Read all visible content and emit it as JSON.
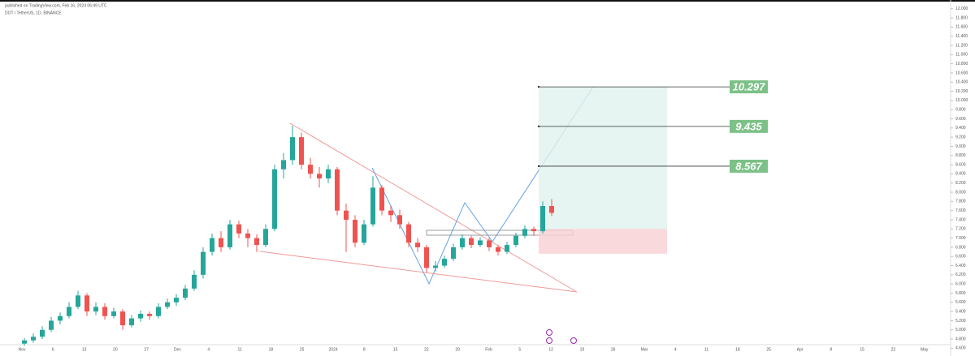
{
  "chart_data": {
    "type": "candlestick",
    "header": "DOT / TetherUS, 1D, BINANCE",
    "published": "published on TradingView.com, Feb 16, 2024 06:49 UTC",
    "candles": {
      "open": [
        4.7,
        4.77,
        4.85,
        5.0,
        5.2,
        5.3,
        5.5,
        5.75,
        5.4,
        5.5,
        5.3,
        5.4,
        5.1,
        5.25,
        5.35,
        5.3,
        5.5,
        5.6,
        5.7,
        5.9,
        6.2,
        6.7,
        7.0,
        6.8,
        7.3,
        7.1,
        7.0,
        6.85,
        7.2,
        8.5,
        8.7,
        9.2,
        8.6,
        8.4,
        8.3,
        8.5,
        7.6,
        7.4,
        6.9,
        7.3,
        8.1,
        7.6,
        7.5,
        7.3,
        6.9,
        6.8,
        6.35,
        6.4,
        6.55,
        6.8,
        7.0,
        6.85,
        6.95,
        6.8,
        6.7,
        6.85,
        7.05,
        7.2,
        7.15,
        7.7
      ],
      "high": [
        4.82,
        4.92,
        5.08,
        5.28,
        5.38,
        5.6,
        5.85,
        5.8,
        5.6,
        5.58,
        5.48,
        5.45,
        5.32,
        5.42,
        5.4,
        5.58,
        5.68,
        5.78,
        5.98,
        6.3,
        6.8,
        7.1,
        7.15,
        7.4,
        7.38,
        7.2,
        7.08,
        7.3,
        8.6,
        8.85,
        9.45,
        9.3,
        8.75,
        8.55,
        8.6,
        8.55,
        7.75,
        7.5,
        7.4,
        8.35,
        8.15,
        7.7,
        7.62,
        7.35,
        7.0,
        6.85,
        6.5,
        6.62,
        6.88,
        7.08,
        7.05,
        7.02,
        7.0,
        6.85,
        6.92,
        7.12,
        7.28,
        7.25,
        7.8,
        7.85
      ],
      "low": [
        4.65,
        4.72,
        4.8,
        4.95,
        5.12,
        5.25,
        5.45,
        5.3,
        5.32,
        5.22,
        5.25,
        5.0,
        5.05,
        5.18,
        5.22,
        5.25,
        5.45,
        5.52,
        5.65,
        5.85,
        6.12,
        6.62,
        6.7,
        6.75,
        7.0,
        6.8,
        6.7,
        6.8,
        7.15,
        8.3,
        8.6,
        8.5,
        8.3,
        8.1,
        8.2,
        7.5,
        6.7,
        6.8,
        6.85,
        7.25,
        7.5,
        7.35,
        7.2,
        6.8,
        6.7,
        6.25,
        6.28,
        6.35,
        6.5,
        6.75,
        6.78,
        6.8,
        6.72,
        6.62,
        6.65,
        6.8,
        7.0,
        7.05,
        7.1,
        7.48
      ],
      "close": [
        4.77,
        4.85,
        5.0,
        5.2,
        5.3,
        5.5,
        5.75,
        5.4,
        5.5,
        5.3,
        5.4,
        5.1,
        5.25,
        5.35,
        5.3,
        5.5,
        5.6,
        5.7,
        5.9,
        6.2,
        6.7,
        7.0,
        6.8,
        7.3,
        7.1,
        7.0,
        6.85,
        7.2,
        8.5,
        8.7,
        9.2,
        8.6,
        8.4,
        8.3,
        8.5,
        7.6,
        7.4,
        6.9,
        7.3,
        8.1,
        7.6,
        7.5,
        7.3,
        6.9,
        6.8,
        6.35,
        6.4,
        6.55,
        6.8,
        7.0,
        6.85,
        6.95,
        6.8,
        6.7,
        6.85,
        7.05,
        7.2,
        7.15,
        7.7,
        7.55
      ]
    },
    "up_color": "#26a69a",
    "down_color": "#ef5350",
    "ylim": [
      4.43,
      12.19
    ],
    "yticks": [
      {
        "value": 12,
        "label": "12.000"
      },
      {
        "value": 11.8,
        "label": "11.800"
      },
      {
        "value": 11.6,
        "label": "11.600"
      },
      {
        "value": 11.4,
        "label": "11.400"
      },
      {
        "value": 11.2,
        "label": "11.200"
      },
      {
        "value": 11,
        "label": "11.000"
      },
      {
        "value": 10.8,
        "label": "10.800"
      },
      {
        "value": 10.6,
        "label": "10.600"
      },
      {
        "value": 10.4,
        "label": "10.400"
      },
      {
        "value": 10.2,
        "label": "10.200"
      },
      {
        "value": 10,
        "label": "10.000"
      },
      {
        "value": 9.8,
        "label": "9.800"
      },
      {
        "value": 9.6,
        "label": "9.600"
      },
      {
        "value": 9.4,
        "label": "9.400"
      },
      {
        "value": 9.2,
        "label": "9.200"
      },
      {
        "value": 9,
        "label": "9.000"
      },
      {
        "value": 8.8,
        "label": "8.800"
      },
      {
        "value": 8.6,
        "label": "8.600"
      },
      {
        "value": 8.4,
        "label": "8.400"
      },
      {
        "value": 8.2,
        "label": "8.200"
      },
      {
        "value": 8,
        "label": "8.000"
      },
      {
        "value": 7.8,
        "label": "7.800"
      },
      {
        "value": 7.6,
        "label": "7.600"
      },
      {
        "value": 7.4,
        "label": "7.400"
      },
      {
        "value": 7.2,
        "label": "7.200"
      },
      {
        "value": 7,
        "label": "7.000"
      },
      {
        "value": 6.8,
        "label": "6.800"
      },
      {
        "value": 6.6,
        "label": "6.600"
      },
      {
        "value": 6.4,
        "label": "6.400"
      },
      {
        "value": 6.2,
        "label": "6.200"
      },
      {
        "value": 6,
        "label": "6.000"
      },
      {
        "value": 5.8,
        "label": "5.800"
      },
      {
        "value": 5.6,
        "label": "5.600"
      },
      {
        "value": 5.4,
        "label": "5.400"
      },
      {
        "value": 5.2,
        "label": "5.200"
      },
      {
        "value": 5,
        "label": "5.000"
      },
      {
        "value": 4.8,
        "label": "4.800"
      },
      {
        "value": 4.6,
        "label": "4.600"
      }
    ],
    "x_labels": [
      "Nov",
      "6",
      "13",
      "20",
      "27",
      "Dec",
      "4",
      "11",
      "18",
      "25",
      "2024",
      "8",
      "15",
      "22",
      "29",
      "Feb",
      "5",
      "12",
      "19",
      "26",
      "Mar",
      "4",
      "11",
      "18",
      "25",
      "Apr",
      "8",
      "15",
      "22",
      "May"
    ],
    "position": {
      "entry": 7.2,
      "stop": 6.66,
      "take_profit": 10.297
    },
    "targets": [
      10.297,
      9.435,
      8.567
    ],
    "value_labels": [
      "10.297",
      "9.435",
      "8.567"
    ]
  }
}
